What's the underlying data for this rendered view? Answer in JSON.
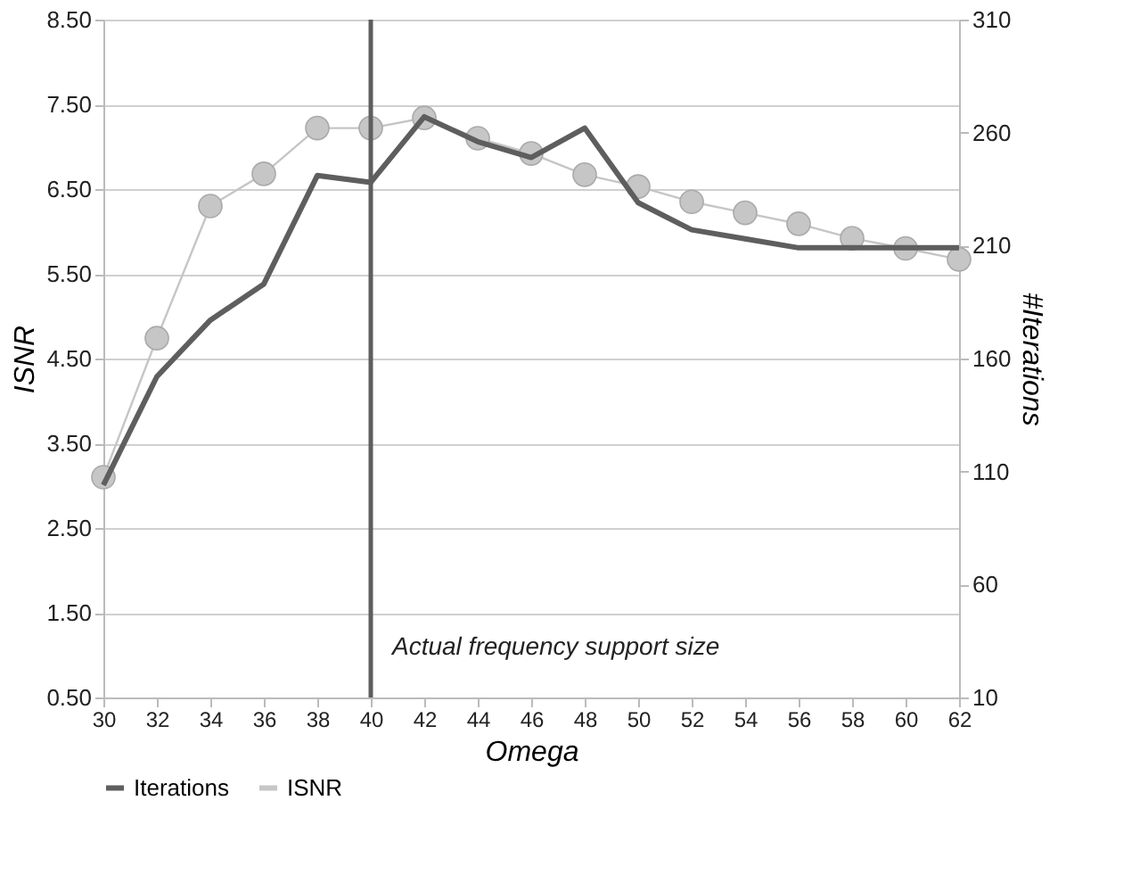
{
  "chart_data": {
    "type": "line",
    "xlabel": "Omega",
    "ylabel": "ISNR",
    "y2label": "#Iterations",
    "x": [
      30,
      32,
      34,
      36,
      38,
      40,
      42,
      44,
      46,
      48,
      50,
      52,
      54,
      56,
      58,
      60,
      62
    ],
    "xlim": [
      30,
      62
    ],
    "xticks": [
      30,
      32,
      34,
      36,
      38,
      40,
      42,
      44,
      46,
      48,
      50,
      52,
      54,
      56,
      58,
      60,
      62
    ],
    "ylim": [
      0.5,
      8.5
    ],
    "yticks": [
      {
        "value": 0.5,
        "label": "0.50"
      },
      {
        "value": 1.5,
        "label": "1.50"
      },
      {
        "value": 2.5,
        "label": "2.50"
      },
      {
        "value": 3.5,
        "label": "3.50"
      },
      {
        "value": 4.5,
        "label": "4.50"
      },
      {
        "value": 5.5,
        "label": "5.50"
      },
      {
        "value": 6.5,
        "label": "6.50"
      },
      {
        "value": 7.5,
        "label": "7.50"
      },
      {
        "value": 8.5,
        "label": "8.50"
      }
    ],
    "y2lim": [
      10,
      310
    ],
    "y2ticks": [
      10,
      60,
      110,
      160,
      210,
      260,
      310
    ],
    "series": [
      {
        "name": "Iterations",
        "color": "#5e5e5e",
        "axis": "y2",
        "marker": "none",
        "values": [
          104,
          152,
          177,
          193,
          241,
          238,
          267,
          256,
          249,
          262,
          229,
          217,
          213,
          209,
          209,
          209,
          209
        ]
      },
      {
        "name": "ISNR",
        "color": "#c6c6c6",
        "marker": "circle",
        "values": [
          3.1,
          4.74,
          6.3,
          6.68,
          7.22,
          7.22,
          7.34,
          7.1,
          6.92,
          6.67,
          6.53,
          6.35,
          6.22,
          6.09,
          5.92,
          5.8,
          5.67
        ]
      }
    ],
    "ref_lines": [
      {
        "axis": "x",
        "value": 40,
        "label": "Actual frequency support size",
        "color": "#5e5e5e"
      }
    ],
    "grid": "y",
    "legend": "bottom",
    "line_style": "solid"
  }
}
